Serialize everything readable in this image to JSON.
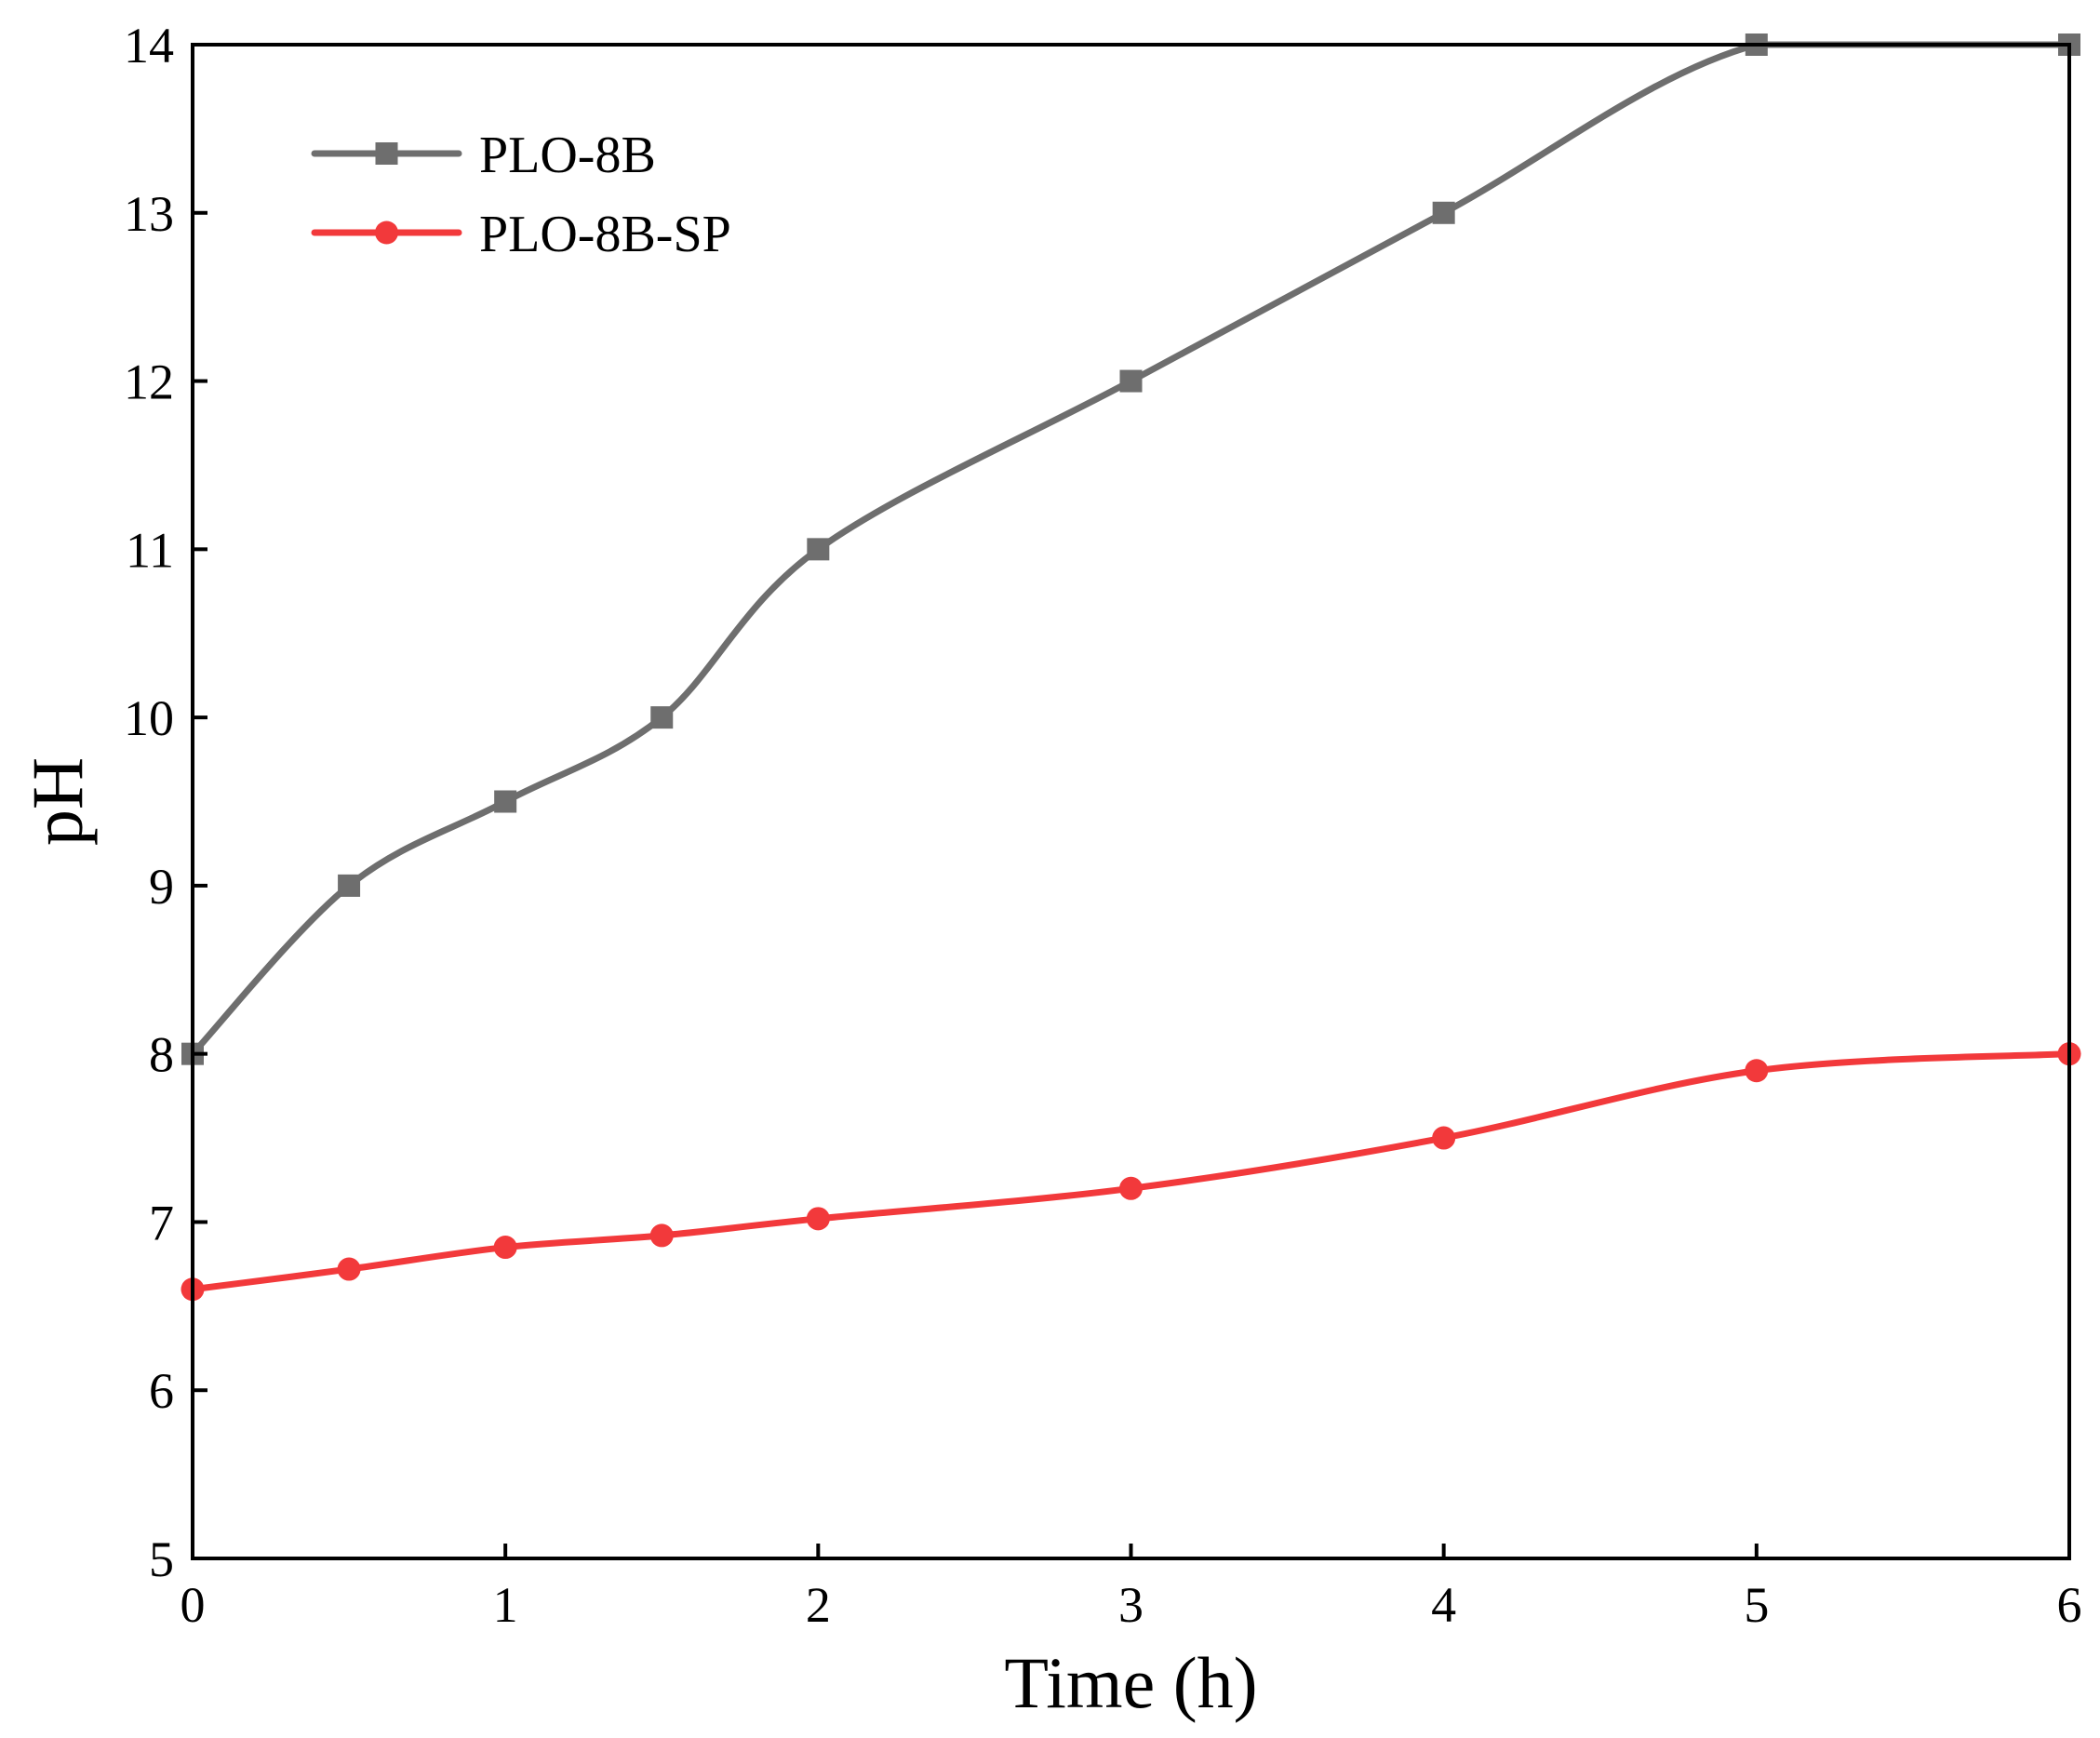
{
  "chart_data": {
    "type": "line",
    "title": "",
    "xlabel": "Time (h)",
    "ylabel": "pH",
    "xlim": [
      0,
      6
    ],
    "ylim": [
      5,
      14
    ],
    "xticks": [
      "0",
      "1",
      "2",
      "3",
      "4",
      "5",
      "6"
    ],
    "yticks": [
      "5",
      "6",
      "7",
      "8",
      "9",
      "10",
      "11",
      "12",
      "13",
      "14"
    ],
    "grid": false,
    "legend_position": "top-left",
    "series": [
      {
        "name": "PLO-8B",
        "color": "#6e6e6e",
        "marker": "square",
        "x": [
          0,
          0.5,
          1,
          1.5,
          2,
          3,
          4,
          5,
          6
        ],
        "y": [
          8,
          9,
          9.5,
          10,
          11,
          12,
          13,
          14,
          14
        ]
      },
      {
        "name": "PLO-8B-SP",
        "color": "#f2393b",
        "marker": "circle",
        "x": [
          0,
          0.5,
          1,
          1.5,
          2,
          3,
          4,
          5,
          6
        ],
        "y": [
          6.6,
          6.72,
          6.85,
          6.92,
          7.02,
          7.2,
          7.5,
          7.9,
          8.0
        ]
      }
    ]
  }
}
